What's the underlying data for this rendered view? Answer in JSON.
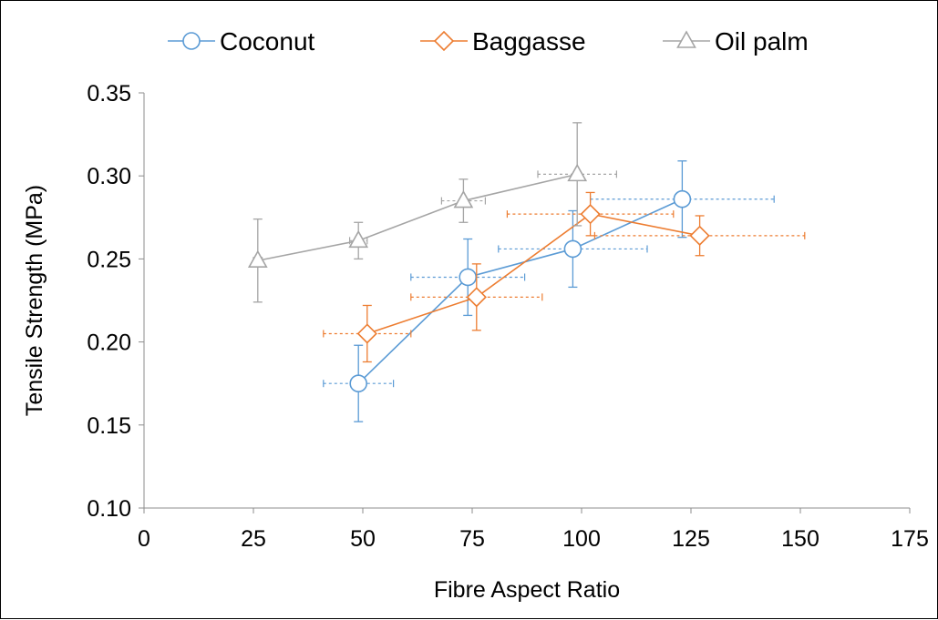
{
  "chart_data": {
    "type": "scatter",
    "title": "",
    "xlabel": "Fibre Aspect Ratio",
    "ylabel": "Tensile Strength (MPa)",
    "xlim": [
      0,
      175
    ],
    "ylim": [
      0.1,
      0.35
    ],
    "x_ticks": [
      0,
      25,
      50,
      75,
      100,
      125,
      150,
      175
    ],
    "y_ticks": [
      0.1,
      0.15,
      0.2,
      0.25,
      0.3,
      0.35
    ],
    "x_tick_labels": [
      "0",
      "25",
      "50",
      "75",
      "100",
      "125",
      "150",
      "175"
    ],
    "y_tick_labels": [
      "0.10",
      "0.15",
      "0.20",
      "0.25",
      "0.30",
      "0.35"
    ],
    "grid": false,
    "legend_position": "top",
    "series": [
      {
        "name": "Coconut",
        "color": "#5B9BD5",
        "marker": "circle",
        "points": [
          {
            "x": 49,
            "y": 0.175,
            "xerr": 8,
            "yerr": 0.023
          },
          {
            "x": 74,
            "y": 0.239,
            "xerr": 13,
            "yerr": 0.023
          },
          {
            "x": 98,
            "y": 0.256,
            "xerr": 17,
            "yerr": 0.023
          },
          {
            "x": 123,
            "y": 0.286,
            "xerr": 21,
            "yerr": 0.023
          }
        ]
      },
      {
        "name": "Baggasse",
        "color": "#ED7D31",
        "marker": "diamond",
        "points": [
          {
            "x": 51,
            "y": 0.205,
            "xerr": 10,
            "yerr": 0.017
          },
          {
            "x": 76,
            "y": 0.227,
            "xerr": 15,
            "yerr": 0.02
          },
          {
            "x": 102,
            "y": 0.277,
            "xerr": 19,
            "yerr": 0.013
          },
          {
            "x": 127,
            "y": 0.264,
            "xerr": 24,
            "yerr": 0.012
          }
        ]
      },
      {
        "name": "Oil palm",
        "color": "#A5A5A5",
        "marker": "triangle",
        "points": [
          {
            "x": 26,
            "y": 0.249,
            "xerr": 1,
            "yerr": 0.025
          },
          {
            "x": 49,
            "y": 0.261,
            "xerr": 2,
            "yerr": 0.011
          },
          {
            "x": 73,
            "y": 0.285,
            "xerr": 5,
            "yerr": 0.013
          },
          {
            "x": 99,
            "y": 0.301,
            "xerr": 9,
            "yerr": 0.031
          }
        ]
      }
    ]
  }
}
